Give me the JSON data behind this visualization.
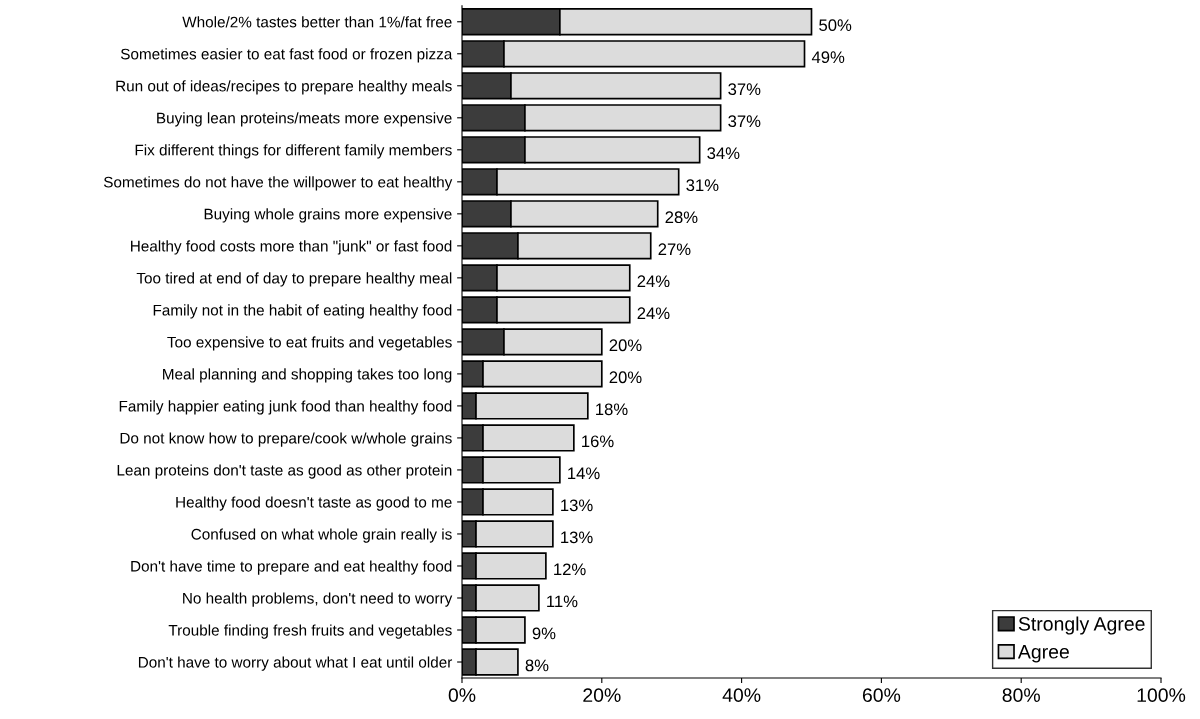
{
  "chart_data": {
    "type": "bar",
    "orientation": "horizontal",
    "stacked": true,
    "categories": [
      "Whole/2% tastes better than 1%/fat free",
      "Sometimes easier to eat fast food or frozen pizza",
      "Run out of ideas/recipes to prepare healthy meals",
      "Buying lean proteins/meats more expensive",
      "Fix different things for different family members",
      "Sometimes do not have the willpower to eat healthy",
      "Buying whole grains more expensive",
      "Healthy food costs more than \"junk\" or fast food",
      "Too tired at end of day to prepare healthy meal",
      "Family not in the habit of eating healthy food",
      "Too expensive to eat fruits and vegetables",
      "Meal planning and shopping takes too long",
      "Family happier eating junk food than healthy food",
      "Do not know how to prepare/cook w/whole grains",
      "Lean proteins don't taste as good as other protein",
      "Healthy food doesn't taste as good to me",
      "Confused on what whole grain really is",
      "Don't have time to prepare and eat healthy food",
      "No health problems, don't need to worry",
      "Trouble finding fresh fruits and vegetables",
      "Don't have to worry about what I eat until older"
    ],
    "series": [
      {
        "name": "Strongly Agree",
        "color": "#3c3c3c",
        "values": [
          14,
          6,
          7,
          9,
          9,
          5,
          7,
          8,
          5,
          5,
          6,
          3,
          2,
          3,
          3,
          3,
          2,
          2,
          2,
          2,
          2
        ]
      },
      {
        "name": "Agree",
        "color": "#dcdcdc",
        "values": [
          36,
          43,
          30,
          28,
          25,
          26,
          21,
          19,
          19,
          19,
          14,
          17,
          16,
          13,
          11,
          10,
          11,
          10,
          9,
          7,
          6
        ]
      }
    ],
    "totals": [
      "50%",
      "49%",
      "37%",
      "37%",
      "34%",
      "31%",
      "28%",
      "27%",
      "24%",
      "24%",
      "20%",
      "20%",
      "18%",
      "16%",
      "14%",
      "13%",
      "13%",
      "12%",
      "11%",
      "9%",
      "8%"
    ],
    "xlim": [
      0,
      100
    ],
    "xticks": [
      {
        "value": 0,
        "label": "0%"
      },
      {
        "value": 20,
        "label": "20%"
      },
      {
        "value": 40,
        "label": "40%"
      },
      {
        "value": 60,
        "label": "60%"
      },
      {
        "value": 80,
        "label": "80%"
      },
      {
        "value": 100,
        "label": "100%"
      }
    ],
    "grid": false,
    "legend": "bottom right"
  }
}
